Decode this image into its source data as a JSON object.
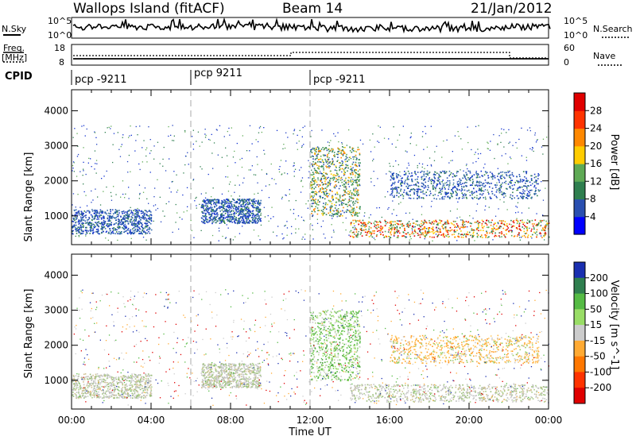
{
  "header": {
    "site": "Wallops Island (fitACF)",
    "beam": "Beam 14",
    "date": "21/Jan/2012"
  },
  "nsky_panel": {
    "left_label": "N.Sky",
    "right_label": "N.Search",
    "left_ticks": [
      "10^5",
      "10^0"
    ],
    "right_ticks": [
      "10^5",
      "10^0"
    ]
  },
  "freq_panel": {
    "left_label_1": "Freq.",
    "left_label_2": "[MHz]",
    "right_label": "Nave",
    "left_ticks": [
      "18",
      "8"
    ],
    "right_ticks": [
      "60",
      "0"
    ]
  },
  "cpid": {
    "label": "CPID",
    "segments": [
      {
        "label": "pcp -9211",
        "start_hour": 0
      },
      {
        "label": "pcp 9211",
        "start_hour": 6
      },
      {
        "label": "pcp -9211",
        "start_hour": 12
      }
    ]
  },
  "chart_data": [
    {
      "type": "heatmap",
      "title": "Power",
      "ylabel": "Slant Range [km]",
      "xlabel": "Time UT",
      "x_range_hours": [
        0,
        24
      ],
      "ylim": [
        180,
        4600
      ],
      "y_ticks": [
        1000,
        2000,
        3000,
        4000
      ],
      "x_ticks": [
        "00:00",
        "04:00",
        "08:00",
        "12:00",
        "16:00",
        "20:00",
        "00:00"
      ],
      "colorbar": {
        "label": "Power [dB]",
        "ticks": [
          "4",
          "8",
          "12",
          "16",
          "20",
          "24",
          "28"
        ],
        "colors": [
          "#0000ff",
          "#2a4fb0",
          "#2f7f4f",
          "#5faa55",
          "#ffcc00",
          "#ff8800",
          "#ff3300",
          "#e00000"
        ]
      },
      "features": [
        {
          "name": "early-evening band",
          "hours": [
            0,
            4
          ],
          "range_km": [
            500,
            1200
          ],
          "level": "low"
        },
        {
          "name": "mid-night patch",
          "hours": [
            6.5,
            9.5
          ],
          "range_km": [
            800,
            1500
          ],
          "level": "low"
        },
        {
          "name": "dawn sweep",
          "hours": [
            12,
            14.5
          ],
          "range_km": [
            1000,
            3000
          ],
          "level": "medium"
        },
        {
          "name": "near-range scatter",
          "hours": [
            14,
            24
          ],
          "range_km": [
            400,
            900
          ],
          "level": "high"
        },
        {
          "name": "far-range band",
          "hours": [
            16,
            23.5
          ],
          "range_km": [
            1500,
            2300
          ],
          "level": "low"
        }
      ]
    },
    {
      "type": "heatmap",
      "title": "Velocity",
      "ylabel": "Slant Range [km]",
      "xlabel": "Time UT",
      "x_range_hours": [
        0,
        24
      ],
      "ylim": [
        180,
        4600
      ],
      "y_ticks": [
        1000,
        2000,
        3000,
        4000
      ],
      "x_ticks": [
        "00:00",
        "04:00",
        "08:00",
        "12:00",
        "16:00",
        "20:00",
        "00:00"
      ],
      "colorbar": {
        "label": "Velocity [m s^-1]",
        "ticks": [
          "200",
          "100",
          "50",
          "15",
          "-15",
          "-50",
          "-100",
          "-200"
        ],
        "colors": [
          "#1a2fb0",
          "#2f7f4f",
          "#55bb44",
          "#99dd66",
          "#cccccc",
          "#ffaa33",
          "#ff7700",
          "#ff3300",
          "#e00000"
        ]
      },
      "features": [
        {
          "name": "early-evening band",
          "hours": [
            0,
            4
          ],
          "range_km": [
            500,
            1200
          ],
          "level": "gray"
        },
        {
          "name": "mid-night patch",
          "hours": [
            6.5,
            9.5
          ],
          "range_km": [
            800,
            1500
          ],
          "level": "gray"
        },
        {
          "name": "dawn sweep",
          "hours": [
            12,
            14.5
          ],
          "range_km": [
            1000,
            3000
          ],
          "level": "green"
        },
        {
          "name": "near-range scatter",
          "hours": [
            14,
            24
          ],
          "range_km": [
            400,
            900
          ],
          "level": "gray"
        },
        {
          "name": "far-range band",
          "hours": [
            16,
            23.5
          ],
          "range_km": [
            1500,
            2300
          ],
          "level": "orange"
        }
      ]
    }
  ]
}
